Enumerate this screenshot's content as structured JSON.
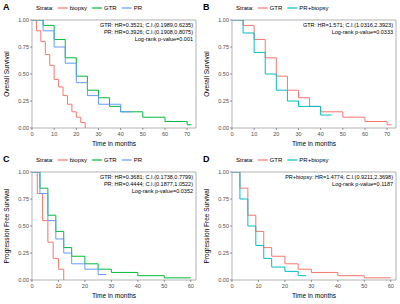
{
  "chart_data": [
    {
      "type": "line",
      "line_style": "step",
      "panel_label": "A",
      "legend_title": "Strata:",
      "ylabel": "Overall Survival",
      "xlabel": "Time in months",
      "xlim": [
        0,
        74
      ],
      "xticks": [
        0,
        10,
        20,
        30,
        40,
        50,
        60,
        70
      ],
      "ylim": [
        0,
        1
      ],
      "yticks": [
        {
          "value": 0,
          "label": "0.00"
        },
        {
          "value": 0.25,
          "label": "0.25"
        },
        {
          "value": 0.5,
          "label": "0.50"
        },
        {
          "value": 0.75,
          "label": "0.75"
        },
        {
          "value": 1,
          "label": "1.00"
        }
      ],
      "annotations": [
        "GTR: HR=0.3521; C.I.(0.1989,0.6235)",
        "PR: HR=0.3926; C.I.(0.1908,0.8075)",
        "Log-rank p-value=0.001"
      ],
      "series": [
        {
          "name": "biopsy",
          "color": "#F8766D",
          "x": [
            0,
            2,
            4,
            6,
            8,
            10,
            12,
            14,
            16,
            18,
            20,
            22,
            24
          ],
          "values": [
            1,
            0.9,
            0.8,
            0.68,
            0.58,
            0.45,
            0.38,
            0.3,
            0.22,
            0.15,
            0.1,
            0.05,
            0
          ]
        },
        {
          "name": "GTR",
          "color": "#00BA38",
          "x": [
            0,
            5,
            10,
            15,
            20,
            25,
            30,
            35,
            40,
            50,
            60,
            70,
            72
          ],
          "values": [
            1,
            0.95,
            0.82,
            0.65,
            0.48,
            0.35,
            0.28,
            0.2,
            0.15,
            0.1,
            0.06,
            0.03,
            0.03
          ]
        },
        {
          "name": "PR",
          "color": "#619CFF",
          "x": [
            0,
            5,
            10,
            15,
            20,
            25,
            30,
            40,
            45
          ],
          "values": [
            1,
            0.9,
            0.75,
            0.6,
            0.42,
            0.3,
            0.22,
            0.15,
            0.15
          ]
        }
      ]
    },
    {
      "type": "line",
      "line_style": "step",
      "panel_label": "B",
      "legend_title": "Strata:",
      "ylabel": "Overall Survival",
      "xlabel": "Time in months",
      "xlim": [
        0,
        74
      ],
      "xticks": [
        0,
        10,
        20,
        30,
        40,
        50,
        60,
        70
      ],
      "ylim": [
        0,
        1
      ],
      "yticks": [
        {
          "value": 0,
          "label": "0.00"
        },
        {
          "value": 0.25,
          "label": "0.25"
        },
        {
          "value": 0.5,
          "label": "0.50"
        },
        {
          "value": 0.75,
          "label": "0.75"
        },
        {
          "value": 1,
          "label": "1.00"
        }
      ],
      "annotations": [
        "GTR: HR=1.571; C.I.(1.0316,2.3923)",
        "Log-rank p-value=0.0333"
      ],
      "series": [
        {
          "name": "GTR",
          "color": "#F8766D",
          "x": [
            0,
            5,
            10,
            15,
            20,
            25,
            30,
            35,
            40,
            50,
            60,
            70,
            72
          ],
          "values": [
            1,
            0.95,
            0.82,
            0.65,
            0.48,
            0.35,
            0.28,
            0.2,
            0.15,
            0.1,
            0.06,
            0.03,
            0.03
          ]
        },
        {
          "name": "PR+biopsy",
          "color": "#00BFC4",
          "x": [
            0,
            5,
            10,
            15,
            20,
            25,
            30,
            40,
            45
          ],
          "values": [
            1,
            0.88,
            0.7,
            0.5,
            0.35,
            0.25,
            0.2,
            0.12,
            0.12
          ]
        }
      ]
    },
    {
      "type": "line",
      "line_style": "step",
      "panel_label": "C",
      "legend_title": "Strata:",
      "ylabel": "Progression Free Survival",
      "xlabel": "Time in months",
      "xlim": [
        0,
        62
      ],
      "xticks": [
        0,
        10,
        20,
        30,
        40,
        50,
        60
      ],
      "ylim": [
        0,
        1
      ],
      "yticks": [
        {
          "value": 0,
          "label": "0.00"
        },
        {
          "value": 0.25,
          "label": "0.25"
        },
        {
          "value": 0.5,
          "label": "0.50"
        },
        {
          "value": 0.75,
          "label": "0.75"
        },
        {
          "value": 1,
          "label": "1.00"
        }
      ],
      "annotations": [
        "GTR: HR=0.3681; C.I.(0.1738,0.7799)",
        "PR: HR=0.4444; C.I.(0.1877,1.0522)",
        "Log-rank p-value=0.0352"
      ],
      "series": [
        {
          "name": "biopsy",
          "color": "#F8766D",
          "x": [
            0,
            2,
            4,
            6,
            8,
            10,
            12
          ],
          "values": [
            1,
            0.8,
            0.55,
            0.35,
            0.2,
            0.1,
            0
          ]
        },
        {
          "name": "GTR",
          "color": "#00BA38",
          "x": [
            0,
            3,
            6,
            9,
            12,
            15,
            20,
            25,
            30,
            40,
            50,
            60
          ],
          "values": [
            1,
            0.85,
            0.6,
            0.45,
            0.3,
            0.22,
            0.15,
            0.1,
            0.07,
            0.04,
            0.02,
            0.02
          ]
        },
        {
          "name": "PR",
          "color": "#619CFF",
          "x": [
            0,
            3,
            6,
            9,
            12,
            15,
            20,
            25,
            28
          ],
          "values": [
            1,
            0.8,
            0.55,
            0.38,
            0.25,
            0.15,
            0.1,
            0.05,
            0.05
          ]
        }
      ]
    },
    {
      "type": "line",
      "line_style": "step",
      "panel_label": "D",
      "legend_title": "Strata:",
      "ylabel": "Progression Free Survival",
      "xlabel": "Time in months",
      "xlim": [
        0,
        62
      ],
      "xticks": [
        0,
        10,
        20,
        30,
        40,
        50,
        60
      ],
      "ylim": [
        0,
        1
      ],
      "yticks": [
        {
          "value": 0,
          "label": "0.00"
        },
        {
          "value": 0.25,
          "label": "0.25"
        },
        {
          "value": 0.5,
          "label": "0.50"
        },
        {
          "value": 0.75,
          "label": "0.75"
        },
        {
          "value": 1,
          "label": "1.00"
        }
      ],
      "annotations": [
        "PR+biopsy: HR=1.4774; C.I.(0.9211,2.3698)",
        "Log-rank p-value=0.1187"
      ],
      "series": [
        {
          "name": "GTR",
          "color": "#F8766D",
          "x": [
            0,
            3,
            6,
            9,
            12,
            15,
            20,
            25,
            30,
            40,
            50,
            60
          ],
          "values": [
            1,
            0.85,
            0.6,
            0.45,
            0.3,
            0.22,
            0.15,
            0.1,
            0.07,
            0.04,
            0.02,
            0.02
          ]
        },
        {
          "name": "PR+biopsy",
          "color": "#00BFC4",
          "x": [
            0,
            3,
            6,
            9,
            12,
            15,
            20,
            25,
            28
          ],
          "values": [
            1,
            0.75,
            0.5,
            0.32,
            0.2,
            0.12,
            0.08,
            0.04,
            0.04
          ]
        }
      ]
    }
  ]
}
